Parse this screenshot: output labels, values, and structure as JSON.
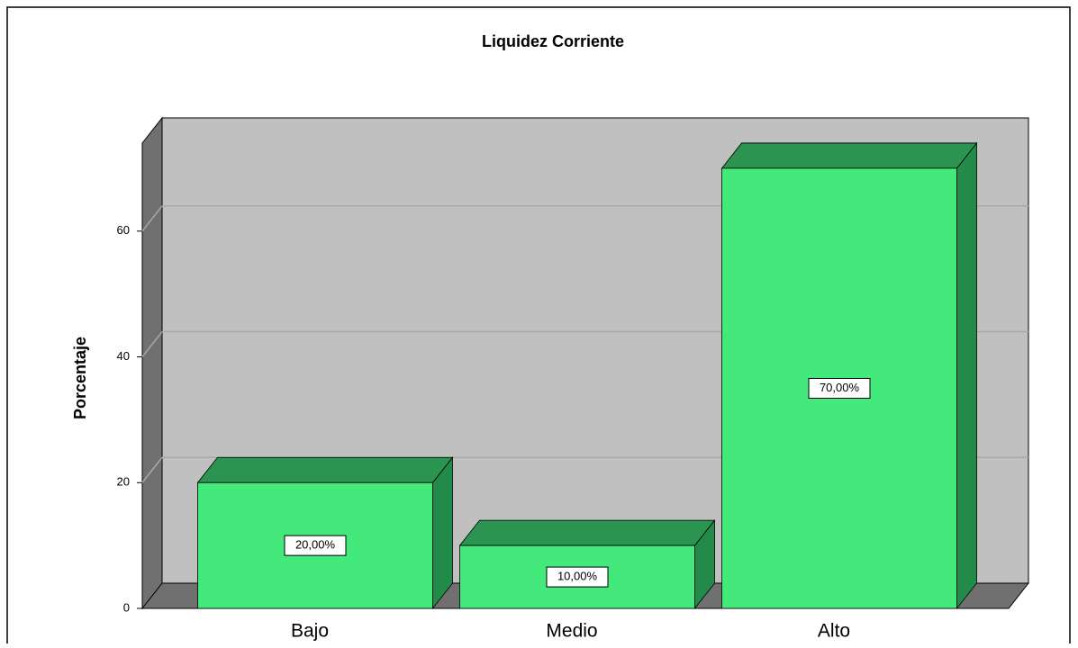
{
  "chart_data": {
    "type": "bar",
    "title": "Liquidez Corriente",
    "y_label": "Porcentaje",
    "categories": [
      "Bajo",
      "Medio",
      "Alto"
    ],
    "values": [
      20,
      10,
      70
    ],
    "value_labels": [
      "20,00%",
      "10,00%",
      "70,00%"
    ],
    "color": "#43e97b",
    "ylim": [
      0,
      74
    ],
    "yticks": [
      0,
      20,
      40,
      60
    ],
    "grid": true
  }
}
